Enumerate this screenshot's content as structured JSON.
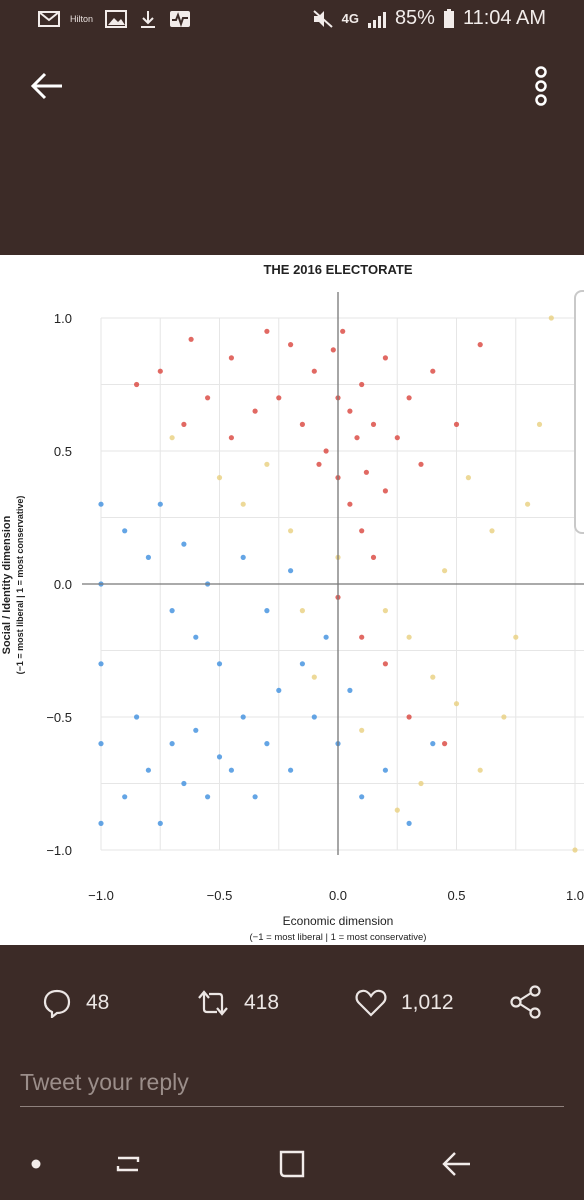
{
  "status_bar": {
    "notification_label": "Hilton",
    "network": "4G",
    "battery": "85%",
    "time": "11:04 AM"
  },
  "chart_data": {
    "type": "scatter",
    "title": "THE 2016 ELECTORATE",
    "xlabel": "Economic dimension",
    "xlabel_sub": "(−1 = most liberal | 1 = most conservative)",
    "ylabel": "Social / Identity dimension",
    "ylabel_sub": "(−1 = most liberal | 1 = most conservative)",
    "xlim": [
      -1.0,
      1.0
    ],
    "ylim": [
      -1.0,
      1.0
    ],
    "x_ticks": [
      "−1.0",
      "−0.5",
      "0.0",
      "0.5",
      "1.0"
    ],
    "y_ticks": [
      "1.0",
      "0.5",
      "0.0",
      "−0.5",
      "−1.0"
    ],
    "grid": true,
    "series": [
      {
        "color": "#d9433c",
        "points": [
          [
            -0.62,
            0.92
          ],
          [
            -0.45,
            0.85
          ],
          [
            -0.3,
            0.95
          ],
          [
            -0.2,
            0.9
          ],
          [
            -0.1,
            0.8
          ],
          [
            0.0,
            0.7
          ],
          [
            0.05,
            0.65
          ],
          [
            0.1,
            0.75
          ],
          [
            0.15,
            0.6
          ],
          [
            0.2,
            0.85
          ],
          [
            0.25,
            0.55
          ],
          [
            0.3,
            0.7
          ],
          [
            0.35,
            0.45
          ],
          [
            0.4,
            0.8
          ],
          [
            0.5,
            0.6
          ],
          [
            0.6,
            0.9
          ],
          [
            -0.05,
            0.5
          ],
          [
            0.0,
            0.4
          ],
          [
            0.05,
            0.3
          ],
          [
            0.1,
            0.2
          ],
          [
            0.2,
            0.35
          ],
          [
            0.15,
            0.1
          ],
          [
            -0.15,
            0.6
          ],
          [
            -0.25,
            0.7
          ],
          [
            -0.35,
            0.65
          ],
          [
            -0.45,
            0.55
          ],
          [
            -0.55,
            0.7
          ],
          [
            -0.65,
            0.6
          ],
          [
            -0.75,
            0.8
          ],
          [
            -0.85,
            0.75
          ],
          [
            0.0,
            -0.05
          ],
          [
            0.1,
            -0.2
          ],
          [
            0.2,
            -0.3
          ],
          [
            0.3,
            -0.5
          ],
          [
            0.45,
            -0.6
          ],
          [
            0.02,
            0.95
          ],
          [
            -0.02,
            0.88
          ],
          [
            0.08,
            0.55
          ],
          [
            -0.08,
            0.45
          ],
          [
            0.12,
            0.42
          ]
        ]
      },
      {
        "color": "#3d8ede",
        "points": [
          [
            -1.0,
            -0.9
          ],
          [
            -1.0,
            -0.6
          ],
          [
            -1.0,
            -0.3
          ],
          [
            -1.0,
            0.0
          ],
          [
            -1.0,
            0.3
          ],
          [
            -0.9,
            -0.8
          ],
          [
            -0.85,
            -0.5
          ],
          [
            -0.8,
            -0.7
          ],
          [
            -0.75,
            -0.9
          ],
          [
            -0.7,
            -0.6
          ],
          [
            -0.65,
            -0.75
          ],
          [
            -0.6,
            -0.55
          ],
          [
            -0.55,
            -0.8
          ],
          [
            -0.5,
            -0.65
          ],
          [
            -0.45,
            -0.7
          ],
          [
            -0.4,
            -0.5
          ],
          [
            -0.35,
            -0.8
          ],
          [
            -0.3,
            -0.6
          ],
          [
            -0.25,
            -0.4
          ],
          [
            -0.2,
            -0.7
          ],
          [
            -0.15,
            -0.3
          ],
          [
            -0.1,
            -0.5
          ],
          [
            -0.05,
            -0.2
          ],
          [
            0.0,
            -0.6
          ],
          [
            0.05,
            -0.4
          ],
          [
            0.1,
            -0.8
          ],
          [
            0.2,
            -0.7
          ],
          [
            0.3,
            -0.9
          ],
          [
            0.4,
            -0.6
          ],
          [
            -0.9,
            0.2
          ],
          [
            -0.8,
            0.1
          ],
          [
            -0.7,
            -0.1
          ],
          [
            -0.6,
            -0.2
          ],
          [
            -0.5,
            -0.3
          ],
          [
            -0.4,
            0.1
          ],
          [
            -0.3,
            -0.1
          ],
          [
            -0.2,
            0.05
          ],
          [
            -0.75,
            0.3
          ],
          [
            -0.65,
            0.15
          ],
          [
            -0.55,
            0.0
          ]
        ]
      },
      {
        "color": "#e8cf7e",
        "points": [
          [
            -0.4,
            0.3
          ],
          [
            -0.2,
            0.2
          ],
          [
            0.0,
            0.1
          ],
          [
            0.2,
            -0.1
          ],
          [
            0.3,
            -0.2
          ],
          [
            0.4,
            -0.35
          ],
          [
            0.5,
            -0.45
          ],
          [
            0.6,
            -0.7
          ],
          [
            0.7,
            -0.5
          ],
          [
            0.8,
            0.3
          ],
          [
            0.85,
            0.6
          ],
          [
            0.9,
            1.0
          ],
          [
            -0.1,
            -0.35
          ],
          [
            0.1,
            -0.55
          ],
          [
            0.25,
            -0.85
          ],
          [
            0.35,
            -0.75
          ],
          [
            -0.3,
            0.45
          ],
          [
            -0.5,
            0.4
          ],
          [
            -0.7,
            0.55
          ],
          [
            0.75,
            -0.2
          ],
          [
            1.0,
            -1.0
          ],
          [
            0.55,
            0.4
          ],
          [
            0.65,
            0.2
          ],
          [
            0.45,
            0.05
          ],
          [
            -0.15,
            -0.1
          ]
        ]
      }
    ]
  },
  "actions": {
    "replies": "48",
    "retweets": "418",
    "likes": "1,012"
  },
  "reply": {
    "placeholder": "Tweet your reply"
  },
  "colors": {
    "background": "#3c2b27",
    "republican_red": "#d9433c",
    "democrat_blue": "#3d8ede",
    "other_yellow": "#e8cf7e"
  }
}
